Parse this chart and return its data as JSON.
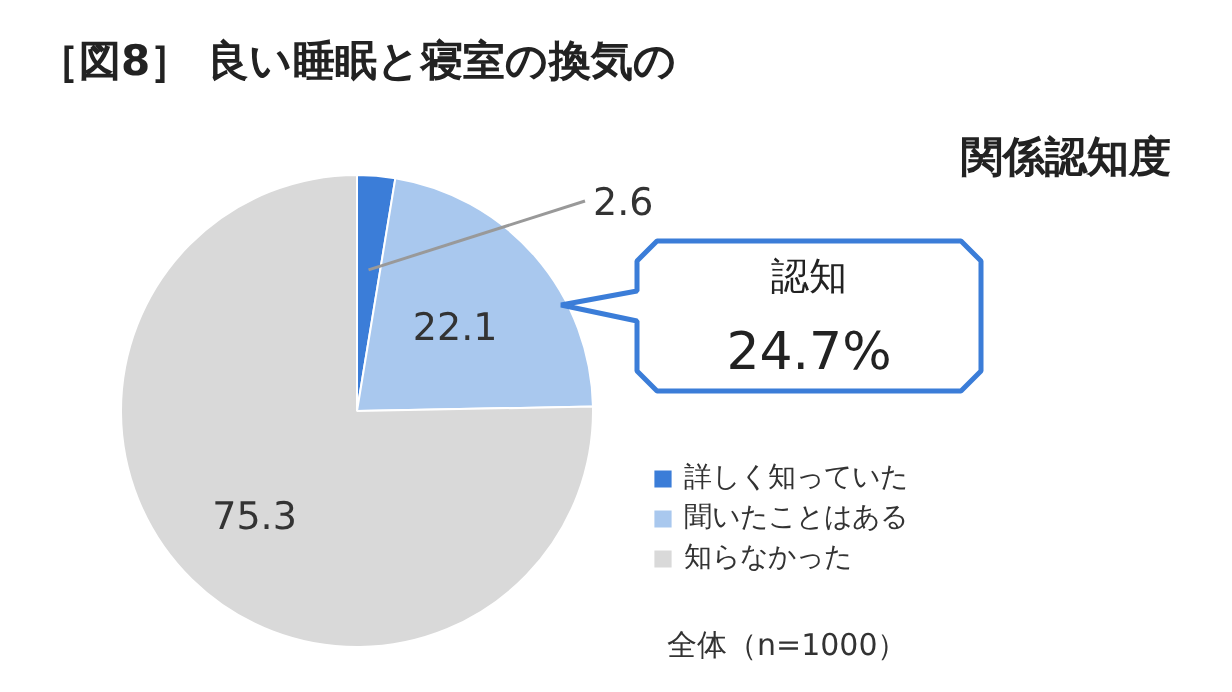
{
  "chart_data": {
    "type": "pie",
    "title": "［図8］ 良い睡眠と寝室の換気の関係認知度",
    "categories": [
      "詳しく知っていた",
      "聞いたことはある",
      "知らなかった"
    ],
    "values": [
      2.6,
      22.1,
      75.3
    ],
    "colors": [
      "#3b7dd8",
      "#a9c8ee",
      "#d9d9d9"
    ],
    "data_labels": true,
    "legend": "right",
    "annotations": [
      "認知\n24.7%",
      "全体（n=1000）"
    ]
  }
}
